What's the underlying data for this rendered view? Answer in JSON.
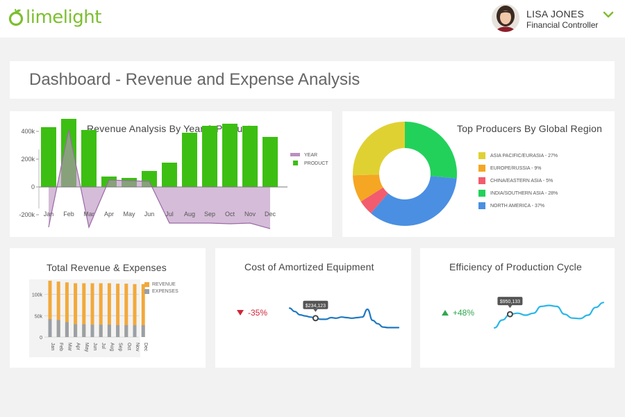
{
  "app": {
    "logo_text": "limelight",
    "brand_color": "#7cbf2f"
  },
  "user": {
    "name": "LISA JONES",
    "role": "Financial Controller",
    "menu_icon": "chevron-down-icon"
  },
  "page": {
    "title": "Dashboard - Revenue and Expense Analysis"
  },
  "cards": {
    "revenue_by_year": {
      "title": "Revenue Analysis By Year & Product"
    },
    "top_producers": {
      "title": "Top Producers By Global Region"
    },
    "total_revenue": {
      "title": "Total Revenue & Expenses"
    },
    "amortized": {
      "title": "Cost of Amortized Equipment",
      "change": "-35%",
      "change_icon": "arrow-down-icon",
      "tooltip": "$234,123"
    },
    "efficiency": {
      "title": "Efficiency of Production Cycle",
      "change": "+48%",
      "change_icon": "arrow-up-icon",
      "tooltip": "$950,133"
    }
  },
  "chart_data": [
    {
      "type": "bar",
      "categories": [
        "Jan",
        "Feb",
        "Mar",
        "Apr",
        "May",
        "Jun",
        "Jul",
        "Aug",
        "Sep",
        "Oct",
        "Nov",
        "Dec"
      ],
      "series": [
        {
          "name": "PRODUCT",
          "type": "bar",
          "color": "#3cbf12",
          "values": [
            430,
            490,
            410,
            75,
            65,
            115,
            175,
            390,
            440,
            455,
            440,
            360
          ]
        },
        {
          "name": "YEAR",
          "type": "area",
          "color": "#b98fc0",
          "values": [
            -290,
            410,
            -290,
            50,
            45,
            40,
            -260,
            -260,
            -260,
            -265,
            -260,
            -300
          ]
        }
      ],
      "yticks": [
        "400k",
        "200k",
        "0",
        "-200k"
      ],
      "ylim": [
        -300,
        500
      ],
      "title": "Revenue Analysis By Year & Product",
      "legend": "right",
      "grid": false
    },
    {
      "type": "pie",
      "donut": true,
      "labels": [
        "ASIA PACIFIC/EURASIA",
        "EUROPE/RUSSIA",
        "CHINA/EASTERN ASIA",
        "INDIA/SOUTHERN ASIA",
        "NORTH AMERICA"
      ],
      "label_text": [
        "ASIA PACIFIC/EURASIA - 27%",
        "EUROPE/RUSSIA - 9%",
        "CHINA/EASTERN ASIA - 5%",
        "INDIA/SOUTHERN ASIA - 28%",
        "NORTH AMERICA - 37%"
      ],
      "values": [
        27,
        9,
        5,
        28,
        37
      ],
      "colors": [
        "#e0d133",
        "#f5a623",
        "#f25c6e",
        "#22d15a",
        "#4a8fe2"
      ],
      "title": "Top Producers By Global Region",
      "legend": "right"
    },
    {
      "type": "bar",
      "categories": [
        "Jan",
        "Feb",
        "Mar",
        "Apr",
        "May",
        "Jun",
        "Jul",
        "Aug",
        "Sep",
        "Oct",
        "Nov",
        "Dec"
      ],
      "series": [
        {
          "name": "REVENUE",
          "color": "#f2a93b",
          "values": [
            132,
            130,
            128,
            126,
            126,
            126,
            126,
            126,
            125,
            125,
            124,
            124
          ]
        },
        {
          "name": "EXPENSES",
          "color": "#9aa0a6",
          "values": [
            42,
            40,
            35,
            30,
            30,
            29,
            29,
            29,
            28,
            28,
            28,
            28
          ]
        }
      ],
      "yticks": [
        "100k",
        "50k",
        "0"
      ],
      "ylim": [
        0,
        135
      ],
      "title": "Total Revenue & Expenses",
      "legend": "top-right",
      "grid": true
    },
    {
      "type": "line",
      "title": "Cost of Amortized Equipment",
      "color": "#1f78c1",
      "values": [
        52,
        46,
        40,
        38,
        36,
        34,
        32,
        32,
        35,
        34,
        36,
        35,
        34,
        35,
        36,
        50,
        30,
        24,
        18,
        17,
        17,
        17
      ],
      "highlight_index": 5,
      "highlight_label": "$234,123"
    },
    {
      "type": "line",
      "title": "Efficiency of Production Cycle",
      "color": "#29b6e8",
      "values": [
        14,
        30,
        42,
        44,
        40,
        44,
        58,
        60,
        58,
        42,
        34,
        33,
        40,
        56,
        66
      ],
      "highlight_index": 2,
      "highlight_label": "$950,133"
    }
  ]
}
